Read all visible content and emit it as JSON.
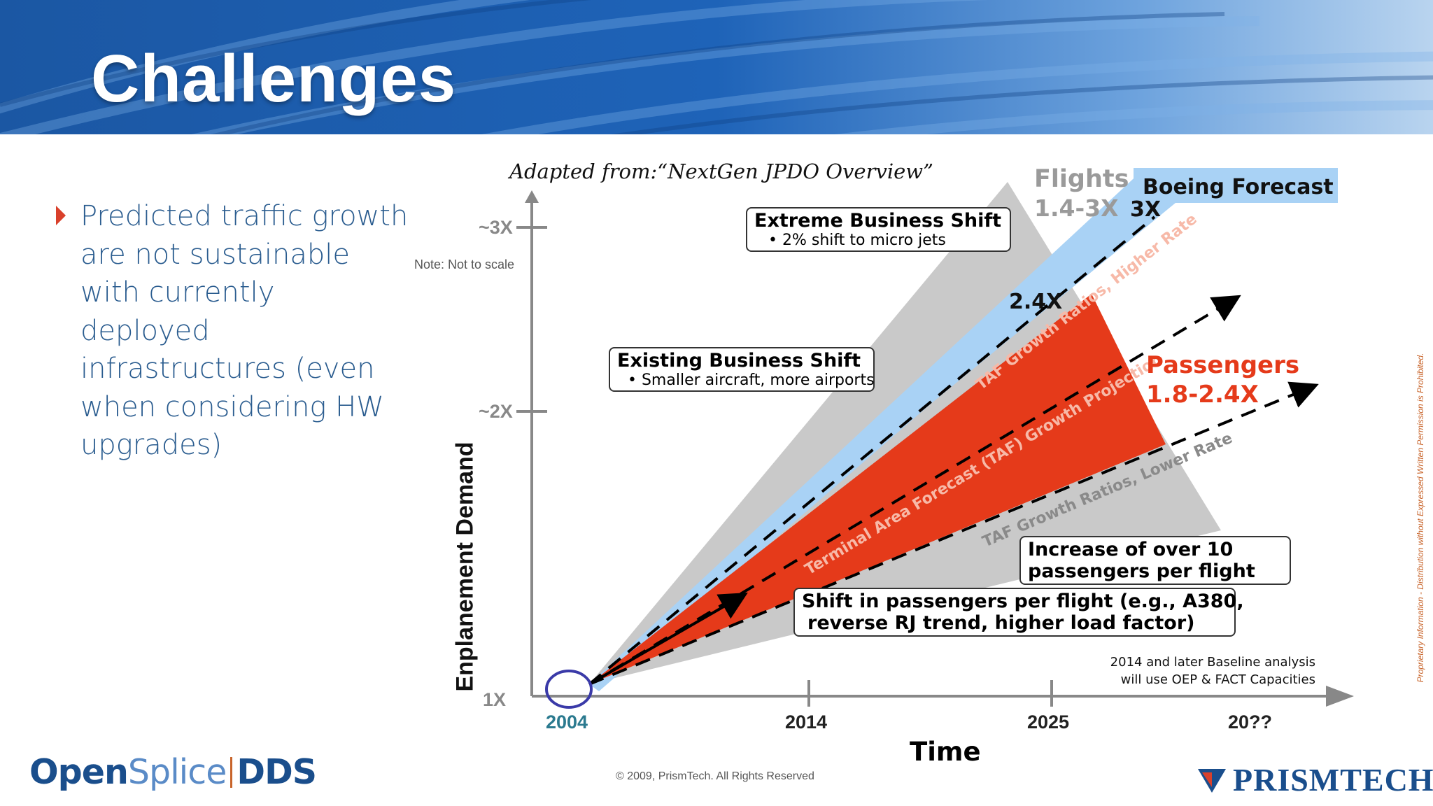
{
  "slide": {
    "title": "Challenges",
    "bullet": "Predicted traffic growth are not sustainable with currently deployed infrastructures (even when considering HW upgrades)"
  },
  "chart_data": {
    "type": "area",
    "source_note": "Adapted from:“NextGen JPDO Overview”",
    "scale_note": "Note: Not to scale",
    "ylabel": "Enplanement Demand",
    "xlabel": "Time",
    "y_ticks": [
      "1X",
      "~2X",
      "~3X"
    ],
    "x_ticks": [
      "2004",
      "2014",
      "2025",
      "20??"
    ],
    "series": [
      {
        "name": "Flights",
        "range_label": "1.4-3X",
        "values": [
          1,
          3
        ],
        "color": "#c9c9c9"
      },
      {
        "name": "Boeing Forecast",
        "values": [
          1,
          3
        ],
        "end_label": "3X",
        "color": "#a9d2f5"
      },
      {
        "name": "Passengers",
        "range_label": "1.8-2.4X",
        "values": [
          1,
          2.4
        ],
        "color": "#e53a1a"
      }
    ],
    "peak_label": "2.4X",
    "dashed_lines": [
      "TAF Growth Ratios, Higher Rate",
      "Terminal Area Forecast (TAF) Growth Projection",
      "TAF Growth Ratios, Lower Rate"
    ],
    "annotations": {
      "extreme": {
        "title": "Extreme Business Shift",
        "sub": "• 2% shift to micro jets"
      },
      "existing": {
        "title": "Existing Business Shift",
        "sub": "• Smaller aircraft, more airports"
      },
      "increase": {
        "line1": "Increase of over 10",
        "line2": "passengers per flight"
      },
      "shift": {
        "line1": "Shift in passengers per flight (e.g., A380,",
        "line2": "reverse RJ trend, higher load factor)"
      },
      "baseline": {
        "line1": "2014 and later Baseline analysis",
        "line2": "will use OEP & FACT Capacities"
      }
    },
    "colors": {
      "flights": "#c9c9c9",
      "boeing": "#a9d2f5",
      "passengers": "#e53a1a",
      "start_circle": "#3a3aa8",
      "year_2004": "#2b7a8f"
    }
  },
  "footer": {
    "logo_open": "Open",
    "logo_splice": "Splice",
    "logo_dds": "DDS",
    "copyright": "© 2009, PrismTech. All Rights Reserved",
    "company": "PRISMTECH",
    "sidenote": "Proprietary Information - Distribution without Expressed Written Permission is Prohibited."
  }
}
